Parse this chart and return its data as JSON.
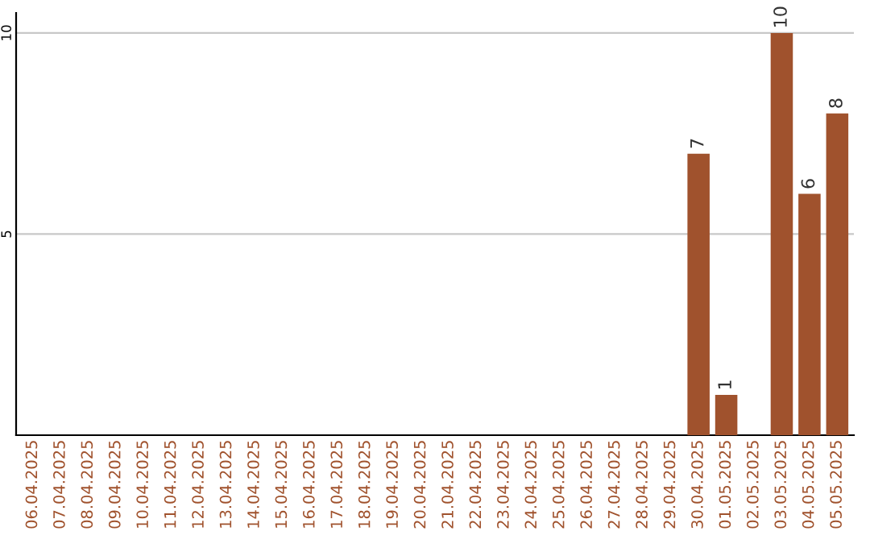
{
  "chart_data": {
    "type": "bar",
    "categories": [
      "06.04.2025",
      "07.04.2025",
      "08.04.2025",
      "09.04.2025",
      "10.04.2025",
      "11.04.2025",
      "12.04.2025",
      "13.04.2025",
      "14.04.2025",
      "15.04.2025",
      "16.04.2025",
      "17.04.2025",
      "18.04.2025",
      "19.04.2025",
      "20.04.2025",
      "21.04.2025",
      "22.04.2025",
      "23.04.2025",
      "24.04.2025",
      "25.04.2025",
      "26.04.2025",
      "27.04.2025",
      "28.04.2025",
      "29.04.2025",
      "30.04.2025",
      "01.05.2025",
      "02.05.2025",
      "03.05.2025",
      "04.05.2025",
      "05.05.2025"
    ],
    "values": [
      0,
      0,
      0,
      0,
      0,
      0,
      0,
      0,
      0,
      0,
      0,
      0,
      0,
      0,
      0,
      0,
      0,
      0,
      0,
      0,
      0,
      0,
      0,
      0,
      7,
      1,
      0,
      10,
      6,
      8
    ],
    "value_labels": [
      null,
      null,
      null,
      null,
      null,
      null,
      null,
      null,
      null,
      null,
      null,
      null,
      null,
      null,
      null,
      null,
      null,
      null,
      null,
      null,
      null,
      null,
      null,
      null,
      "7",
      "1",
      null,
      "10",
      "6",
      "8"
    ],
    "color": "#a0522d",
    "ylim": [
      0,
      10.5
    ],
    "yticks": [
      5,
      10
    ],
    "grid": "y"
  }
}
